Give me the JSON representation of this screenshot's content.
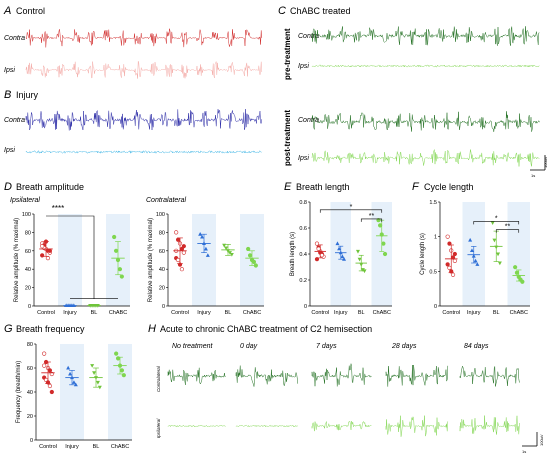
{
  "panels": {
    "A": {
      "letter": "A",
      "title": "Control",
      "rows": [
        "Contra",
        "Ipsi"
      ]
    },
    "B": {
      "letter": "B",
      "title": "Injury",
      "rows": [
        "Contra",
        "Ipsi"
      ]
    },
    "C": {
      "letter": "C",
      "title": "ChABC treated",
      "groups": [
        "pre-treatment",
        "post-treatment"
      ],
      "rows": [
        "Contra",
        "Ipsi"
      ]
    },
    "D": {
      "letter": "D",
      "title": "Breath amplitude",
      "sub_left": "Ipsilateral",
      "sub_right": "Contralateral",
      "significance": "****"
    },
    "E": {
      "letter": "E",
      "title": "Breath length",
      "sig_top": "*",
      "sig_inner": "**"
    },
    "F": {
      "letter": "F",
      "title": "Cycle length",
      "sig_top": "*",
      "sig_inner": "**"
    },
    "G": {
      "letter": "G",
      "title": "Breath frequency"
    },
    "H": {
      "letter": "H",
      "title": "Acute to chronic ChABC treatment of C2 hemisection",
      "columns": [
        "No treatment",
        "0 day",
        "7 days",
        "28 days",
        "84 days"
      ],
      "rows": [
        "Contralateral",
        "Ipsilateral"
      ]
    }
  },
  "scale_bar": {
    "time": "1s",
    "amp": "100uV"
  },
  "colors": {
    "control_dark": "#d12a2a",
    "control_light": "#f4aaa6",
    "injury_dark": "#2a2aa6",
    "injury_light": "#3fb6e6",
    "chabc_dark": "#1f6e1f",
    "chabc_light": "#7fd64f",
    "bl": "#6fc43a",
    "shade": "#e6f0fa"
  },
  "chart_data": [
    {
      "type": "scatter",
      "title": "Breath amplitude",
      "subtitle": "Ipsilateral",
      "categories": [
        "Control",
        "Injury",
        "BL",
        "ChABC"
      ],
      "ylabel": "Relative amplitude (% maximal)",
      "ylim": [
        0,
        100
      ],
      "yticks": [
        0,
        20,
        40,
        60,
        80,
        100
      ],
      "series": [
        {
          "values": [
            62,
            0.5,
            0.5,
            52
          ],
          "sd": [
            8,
            0.5,
            0.5,
            18
          ],
          "points": [
            [
              68,
              66,
              62,
              60,
              58,
              55,
              63,
              70,
              52,
              60,
              65
            ],
            [
              0.5,
              0.5,
              0.5,
              0.5,
              0.5
            ],
            [
              0.5,
              0.5,
              0.5,
              0.5,
              0.5
            ],
            [
              75,
              60,
              50,
              40,
              32
            ]
          ]
        }
      ]
    },
    {
      "type": "scatter",
      "title": "",
      "subtitle": "Contralateral",
      "categories": [
        "Control",
        "Injury",
        "BL",
        "ChABC"
      ],
      "ylabel": "Relative amplitude (% maximal)",
      "ylim": [
        0,
        100
      ],
      "yticks": [
        0,
        20,
        40,
        60,
        80,
        100
      ],
      "series": [
        {
          "values": [
            60,
            68,
            61,
            52
          ],
          "sd": [
            14,
            10,
            6,
            8
          ],
          "points": [
            [
              80,
              72,
              68,
              62,
              58,
              52,
              50,
              45,
              40,
              65,
              60
            ],
            [
              78,
              75,
              68,
              62,
              55
            ],
            [
              66,
              63,
              60,
              58,
              56
            ],
            [
              62,
              55,
              50,
              48,
              44
            ]
          ]
        }
      ]
    },
    {
      "type": "scatter",
      "title": "Breath length",
      "categories": [
        "Control",
        "Injury",
        "BL",
        "ChABC"
      ],
      "ylabel": "Breath length (s)",
      "ylim": [
        0,
        0.8
      ],
      "yticks": [
        0,
        0.2,
        0.4,
        0.6,
        0.8
      ],
      "series": [
        {
          "values": [
            0.42,
            0.41,
            0.33,
            0.54
          ],
          "sd": [
            0.05,
            0.05,
            0.06,
            0.12
          ],
          "points": [
            [
              0.48,
              0.45,
              0.42,
              0.4,
              0.38,
              0.36,
              0.44,
              0.41,
              0.39
            ],
            [
              0.48,
              0.44,
              0.41,
              0.38,
              0.36
            ],
            [
              0.42,
              0.36,
              0.32,
              0.28,
              0.27
            ],
            [
              0.66,
              0.62,
              0.55,
              0.48,
              0.4
            ]
          ]
        }
      ]
    },
    {
      "type": "scatter",
      "title": "Cycle length",
      "categories": [
        "Control",
        "Injury",
        "BL",
        "ChABC"
      ],
      "ylabel": "Cycle length (s)",
      "ylim": [
        0,
        1.5
      ],
      "yticks": [
        0,
        0.5,
        1.0,
        1.5
      ],
      "series": [
        {
          "values": [
            0.68,
            0.74,
            0.86,
            0.44
          ],
          "sd": [
            0.2,
            0.12,
            0.22,
            0.08
          ],
          "points": [
            [
              1.0,
              0.9,
              0.8,
              0.7,
              0.65,
              0.6,
              0.55,
              0.5,
              0.45,
              0.75
            ],
            [
              0.95,
              0.8,
              0.72,
              0.65,
              0.6
            ],
            [
              1.2,
              0.95,
              0.85,
              0.75,
              0.62
            ],
            [
              0.56,
              0.48,
              0.42,
              0.38,
              0.35
            ]
          ]
        }
      ]
    },
    {
      "type": "scatter",
      "title": "Breath frequency",
      "categories": [
        "Control",
        "Injury",
        "BL",
        "ChABC"
      ],
      "ylabel": "Frequency (breath/min)",
      "ylim": [
        0,
        80
      ],
      "yticks": [
        0,
        20,
        40,
        60,
        80
      ],
      "series": [
        {
          "values": [
            56,
            52,
            52,
            62
          ],
          "sd": [
            9,
            6,
            8,
            7
          ],
          "points": [
            [
              72,
              65,
              60,
              58,
              55,
              52,
              50,
              48,
              45,
              40,
              62
            ],
            [
              60,
              55,
              52,
              48,
              46
            ],
            [
              62,
              56,
              52,
              48,
              44
            ],
            [
              72,
              68,
              62,
              58,
              54
            ]
          ]
        }
      ]
    }
  ]
}
